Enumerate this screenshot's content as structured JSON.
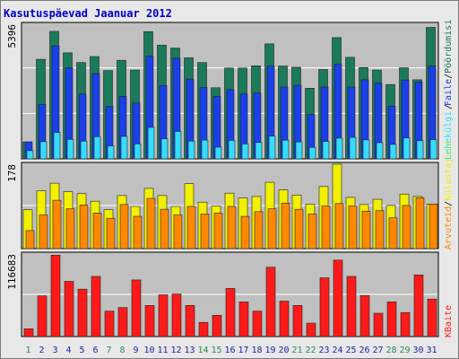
{
  "title": "Kasutuspäevad Jaanuar 2012",
  "colors": {
    "title": "#0000cc",
    "panel_bg": "#c0c0c0",
    "grid": "#ffffff",
    "visits": "#1a7a5a",
    "pages": "#1b3fe8",
    "files": "#33ddff",
    "hits": "#f0f000",
    "hosts": "#ff8800",
    "kbytes": "#ff1a1a",
    "weekend_label": "#2e8b57",
    "weekday_label": "#2222aa"
  },
  "chart_data": [
    {
      "type": "bar",
      "panel": "top",
      "ymax_label": "5396",
      "ylim": [
        0,
        5396
      ],
      "legend": {
        "visits": "Pöördumisi",
        "pages": "Faile",
        "files": "Lehekülgi",
        "sep": "/"
      },
      "categories": [
        "1",
        "2",
        "3",
        "4",
        "5",
        "6",
        "7",
        "8",
        "9",
        "10",
        "11",
        "12",
        "13",
        "14",
        "15",
        "16",
        "17",
        "18",
        "19",
        "20",
        "21",
        "22",
        "23",
        "24",
        "25",
        "26",
        "27",
        "28",
        "29",
        "30",
        "31"
      ],
      "series": [
        {
          "name": "Pöördumisi",
          "key": "visits",
          "values": [
            680,
            3990,
            5110,
            4250,
            3860,
            4100,
            3540,
            3950,
            3560,
            5100,
            4560,
            4440,
            4050,
            3860,
            2850,
            3640,
            3640,
            3730,
            4610,
            3720,
            3670,
            2830,
            3580,
            4860,
            4070,
            3660,
            3560,
            2980,
            3650,
            3170,
            5270
          ]
        },
        {
          "name": "Faile",
          "key": "pages",
          "values": [
            680,
            2180,
            4530,
            3650,
            2600,
            3420,
            2100,
            2500,
            2240,
            4110,
            2940,
            4030,
            3200,
            2860,
            2500,
            2780,
            2600,
            2640,
            3720,
            2880,
            2950,
            1770,
            2880,
            3790,
            2880,
            3170,
            3040,
            2110,
            3160,
            3080,
            3720
          ]
        },
        {
          "name": "Lehekülgi",
          "key": "files",
          "values": [
            330,
            690,
            1060,
            780,
            710,
            890,
            520,
            900,
            600,
            1260,
            800,
            1100,
            710,
            750,
            470,
            740,
            600,
            660,
            910,
            750,
            680,
            460,
            700,
            830,
            860,
            760,
            650,
            580,
            840,
            730,
            770
          ]
        }
      ]
    },
    {
      "type": "bar",
      "panel": "middle",
      "ymax_label": "178",
      "ylim": [
        0,
        178
      ],
      "legend": {
        "hits": "Külastajaid",
        "hosts": "Arvuteid",
        "sep": "/"
      },
      "categories": [
        "1",
        "2",
        "3",
        "4",
        "5",
        "6",
        "7",
        "8",
        "9",
        "10",
        "11",
        "12",
        "13",
        "14",
        "15",
        "16",
        "17",
        "18",
        "19",
        "20",
        "21",
        "22",
        "23",
        "24",
        "25",
        "26",
        "27",
        "28",
        "29",
        "30",
        "31"
      ],
      "series": [
        {
          "name": "Külastajaid",
          "key": "hits",
          "values": [
            82,
            122,
            138,
            120,
            116,
            100,
            82,
            112,
            89,
            127,
            112,
            89,
            137,
            98,
            90,
            117,
            107,
            110,
            140,
            124,
            113,
            94,
            131,
            178,
            108,
            93,
            104,
            91,
            115,
            110,
            94
          ]
        },
        {
          "name": "Arvuteid",
          "key": "hosts",
          "values": [
            38,
            71,
            102,
            84,
            92,
            75,
            64,
            93,
            68,
            106,
            83,
            71,
            89,
            73,
            75,
            89,
            68,
            78,
            84,
            96,
            83,
            73,
            90,
            95,
            90,
            79,
            80,
            65,
            91,
            107,
            94
          ]
        }
      ]
    },
    {
      "type": "bar",
      "panel": "bottom",
      "ymax_label": "116683",
      "ylim": [
        0,
        116683
      ],
      "legend": {
        "kbytes": "KBaite"
      },
      "categories": [
        "1",
        "2",
        "3",
        "4",
        "5",
        "6",
        "7",
        "8",
        "9",
        "10",
        "11",
        "12",
        "13",
        "14",
        "15",
        "16",
        "17",
        "18",
        "19",
        "20",
        "21",
        "22",
        "23",
        "24",
        "25",
        "26",
        "27",
        "28",
        "29",
        "30",
        "31"
      ],
      "series": [
        {
          "name": "KBaite",
          "key": "kbytes",
          "values": [
            11000,
            57500,
            115000,
            78000,
            67000,
            85000,
            36000,
            41000,
            80000,
            44000,
            59000,
            60000,
            44000,
            20000,
            30000,
            68000,
            49000,
            36000,
            98000,
            50000,
            44000,
            19000,
            83000,
            108000,
            85000,
            58000,
            33000,
            49000,
            34000,
            87000,
            53000
          ]
        }
      ]
    }
  ],
  "days": [
    {
      "label": "1",
      "weekend": true
    },
    {
      "label": "2",
      "weekend": false
    },
    {
      "label": "3",
      "weekend": false
    },
    {
      "label": "4",
      "weekend": false
    },
    {
      "label": "5",
      "weekend": false
    },
    {
      "label": "6",
      "weekend": false
    },
    {
      "label": "7",
      "weekend": true
    },
    {
      "label": "8",
      "weekend": true
    },
    {
      "label": "9",
      "weekend": false
    },
    {
      "label": "10",
      "weekend": false
    },
    {
      "label": "11",
      "weekend": false
    },
    {
      "label": "12",
      "weekend": false
    },
    {
      "label": "13",
      "weekend": false
    },
    {
      "label": "14",
      "weekend": true
    },
    {
      "label": "15",
      "weekend": true
    },
    {
      "label": "16",
      "weekend": false
    },
    {
      "label": "17",
      "weekend": false
    },
    {
      "label": "18",
      "weekend": false
    },
    {
      "label": "19",
      "weekend": false
    },
    {
      "label": "20",
      "weekend": false
    },
    {
      "label": "21",
      "weekend": true
    },
    {
      "label": "22",
      "weekend": true
    },
    {
      "label": "23",
      "weekend": false
    },
    {
      "label": "24",
      "weekend": false
    },
    {
      "label": "25",
      "weekend": false
    },
    {
      "label": "26",
      "weekend": false
    },
    {
      "label": "27",
      "weekend": false
    },
    {
      "label": "28",
      "weekend": true
    },
    {
      "label": "29",
      "weekend": true
    },
    {
      "label": "30",
      "weekend": false
    },
    {
      "label": "31",
      "weekend": false
    }
  ]
}
